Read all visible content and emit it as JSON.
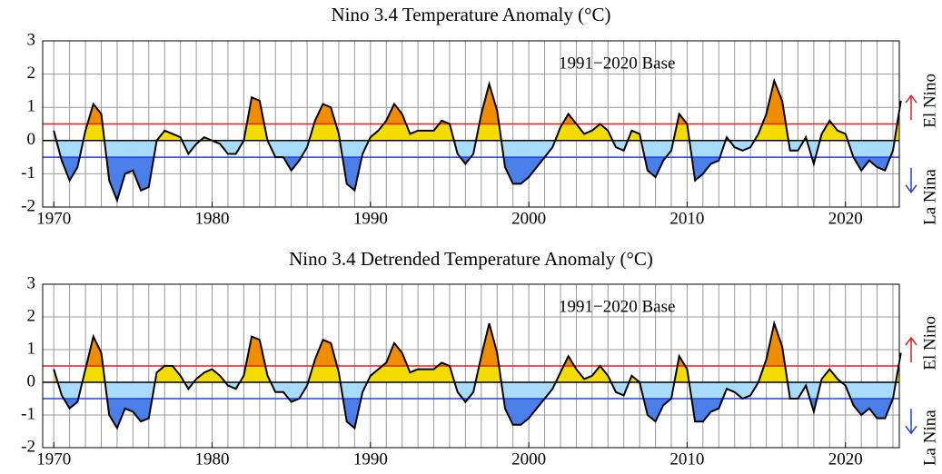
{
  "chart_data": [
    {
      "type": "line",
      "title": "Nino 3.4 Temperature Anomaly (°C)",
      "annotation": "1991−2020 Base",
      "labels": [
        "El Nino",
        "La Nina"
      ],
      "x": [
        1970,
        1970.5,
        1971,
        1971.5,
        1972,
        1972.5,
        1973,
        1973.5,
        1974,
        1974.5,
        1975,
        1975.5,
        1976,
        1976.5,
        1977,
        1977.5,
        1978,
        1978.5,
        1979,
        1979.5,
        1980,
        1980.5,
        1981,
        1981.5,
        1982,
        1982.5,
        1983,
        1983.5,
        1984,
        1984.5,
        1985,
        1985.5,
        1986,
        1986.5,
        1987,
        1987.5,
        1988,
        1988.5,
        1989,
        1989.5,
        1990,
        1990.5,
        1991,
        1991.5,
        1992,
        1992.5,
        1993,
        1993.5,
        1994,
        1994.5,
        1995,
        1995.5,
        1996,
        1996.5,
        1997,
        1997.5,
        1998,
        1998.5,
        1999,
        1999.5,
        2000,
        2000.5,
        2001,
        2001.5,
        2002,
        2002.5,
        2003,
        2003.5,
        2004,
        2004.5,
        2005,
        2005.5,
        2006,
        2006.5,
        2007,
        2007.5,
        2008,
        2008.5,
        2009,
        2009.5,
        2010,
        2010.5,
        2011,
        2011.5,
        2012,
        2012.5,
        2013,
        2013.5,
        2014,
        2014.5,
        2015,
        2015.5,
        2016,
        2016.5,
        2017,
        2017.5,
        2018,
        2018.5,
        2019,
        2019.5,
        2020,
        2020.5,
        2021,
        2021.5,
        2022,
        2022.5,
        2023,
        2023.5
      ],
      "series": [
        {
          "color": "#000000",
          "values": [
            0.3,
            -0.6,
            -1.2,
            -0.8,
            0.3,
            1.1,
            0.8,
            -1.2,
            -1.8,
            -1.0,
            -0.9,
            -1.5,
            -1.4,
            0.0,
            0.3,
            0.2,
            0.1,
            -0.4,
            -0.1,
            0.1,
            0.0,
            -0.1,
            -0.4,
            -0.4,
            0.0,
            1.3,
            1.2,
            0.0,
            -0.5,
            -0.5,
            -0.9,
            -0.6,
            -0.2,
            0.6,
            1.1,
            1.0,
            0.2,
            -1.3,
            -1.5,
            -0.4,
            0.1,
            0.3,
            0.6,
            1.1,
            0.8,
            0.2,
            0.3,
            0.3,
            0.3,
            0.6,
            0.5,
            -0.4,
            -0.7,
            -0.4,
            0.8,
            1.7,
            0.9,
            -0.8,
            -1.3,
            -1.3,
            -1.1,
            -0.8,
            -0.5,
            -0.2,
            0.4,
            0.8,
            0.5,
            0.2,
            0.3,
            0.5,
            0.3,
            -0.2,
            -0.3,
            0.3,
            0.2,
            -0.9,
            -1.1,
            -0.6,
            -0.3,
            0.8,
            0.5,
            -1.2,
            -1.0,
            -0.7,
            -0.6,
            0.1,
            -0.2,
            -0.3,
            -0.2,
            0.2,
            0.8,
            1.8,
            1.2,
            -0.3,
            -0.3,
            0.1,
            -0.7,
            0.2,
            0.6,
            0.3,
            0.2,
            -0.5,
            -0.9,
            -0.6,
            -0.8,
            -0.9,
            -0.3,
            1.2
          ]
        }
      ],
      "thresholds": [
        {
          "value": 0.5,
          "color": "#e02020"
        },
        {
          "value": -0.5,
          "color": "#2040e0"
        }
      ],
      "fill_colors": {
        "above": "#f08c00",
        "warm": "#f5dc00",
        "cool": "#a8dcff",
        "below": "#4a7ee8"
      },
      "xlim": [
        1969.3,
        2023.4
      ],
      "xticks": [
        1970,
        1980,
        1990,
        2000,
        2010,
        2020
      ],
      "ylim": [
        -2,
        3
      ],
      "yticks": [
        -2,
        -1,
        0,
        1,
        2,
        3
      ],
      "grid": true
    },
    {
      "type": "line",
      "title": "Nino 3.4 Detrended Temperature Anomaly (°C)",
      "annotation": "1991−2020 Base",
      "labels": [
        "El Nino",
        "La Nina"
      ],
      "x": [
        1970,
        1970.5,
        1971,
        1971.5,
        1972,
        1972.5,
        1973,
        1973.5,
        1974,
        1974.5,
        1975,
        1975.5,
        1976,
        1976.5,
        1977,
        1977.5,
        1978,
        1978.5,
        1979,
        1979.5,
        1980,
        1980.5,
        1981,
        1981.5,
        1982,
        1982.5,
        1983,
        1983.5,
        1984,
        1984.5,
        1985,
        1985.5,
        1986,
        1986.5,
        1987,
        1987.5,
        1988,
        1988.5,
        1989,
        1989.5,
        1990,
        1990.5,
        1991,
        1991.5,
        1992,
        1992.5,
        1993,
        1993.5,
        1994,
        1994.5,
        1995,
        1995.5,
        1996,
        1996.5,
        1997,
        1997.5,
        1998,
        1998.5,
        1999,
        1999.5,
        2000,
        2000.5,
        2001,
        2001.5,
        2002,
        2002.5,
        2003,
        2003.5,
        2004,
        2004.5,
        2005,
        2005.5,
        2006,
        2006.5,
        2007,
        2007.5,
        2008,
        2008.5,
        2009,
        2009.5,
        2010,
        2010.5,
        2011,
        2011.5,
        2012,
        2012.5,
        2013,
        2013.5,
        2014,
        2014.5,
        2015,
        2015.5,
        2016,
        2016.5,
        2017,
        2017.5,
        2018,
        2018.5,
        2019,
        2019.5,
        2020,
        2020.5,
        2021,
        2021.5,
        2022,
        2022.5,
        2023,
        2023.5
      ],
      "series": [
        {
          "color": "#000000",
          "values": [
            0.4,
            -0.4,
            -0.8,
            -0.6,
            0.4,
            1.4,
            0.9,
            -1.0,
            -1.4,
            -0.8,
            -0.9,
            -1.2,
            -1.1,
            0.3,
            0.5,
            0.5,
            0.2,
            -0.2,
            0.1,
            0.3,
            0.4,
            0.2,
            -0.1,
            -0.2,
            0.2,
            1.4,
            1.3,
            0.2,
            -0.3,
            -0.3,
            -0.6,
            -0.5,
            -0.1,
            0.7,
            1.3,
            1.2,
            0.3,
            -1.2,
            -1.4,
            -0.3,
            0.2,
            0.4,
            0.6,
            1.2,
            0.9,
            0.3,
            0.4,
            0.4,
            0.4,
            0.6,
            0.5,
            -0.3,
            -0.6,
            -0.3,
            0.8,
            1.8,
            0.9,
            -0.8,
            -1.3,
            -1.3,
            -1.1,
            -0.8,
            -0.5,
            -0.2,
            0.3,
            0.8,
            0.4,
            0.1,
            0.2,
            0.5,
            0.2,
            -0.3,
            -0.4,
            0.2,
            0.0,
            -1.0,
            -1.2,
            -0.7,
            -0.5,
            0.8,
            0.4,
            -1.2,
            -1.2,
            -0.9,
            -0.8,
            -0.2,
            -0.3,
            -0.5,
            -0.4,
            0.0,
            0.7,
            1.8,
            1.1,
            -0.5,
            -0.5,
            -0.1,
            -0.9,
            0.1,
            0.4,
            0.1,
            -0.1,
            -0.7,
            -1.0,
            -0.8,
            -1.1,
            -1.1,
            -0.5,
            0.9
          ]
        }
      ],
      "thresholds": [
        {
          "value": 0.5,
          "color": "#e02020"
        },
        {
          "value": -0.5,
          "color": "#2040e0"
        }
      ],
      "fill_colors": {
        "above": "#f08c00",
        "warm": "#f5dc00",
        "cool": "#a8dcff",
        "below": "#4a7ee8"
      },
      "xlim": [
        1969.3,
        2023.4
      ],
      "xticks": [
        1970,
        1980,
        1990,
        2000,
        2010,
        2020
      ],
      "ylim": [
        -2,
        3
      ],
      "yticks": [
        -2,
        -1,
        0,
        1,
        2,
        3
      ],
      "grid": true
    }
  ]
}
